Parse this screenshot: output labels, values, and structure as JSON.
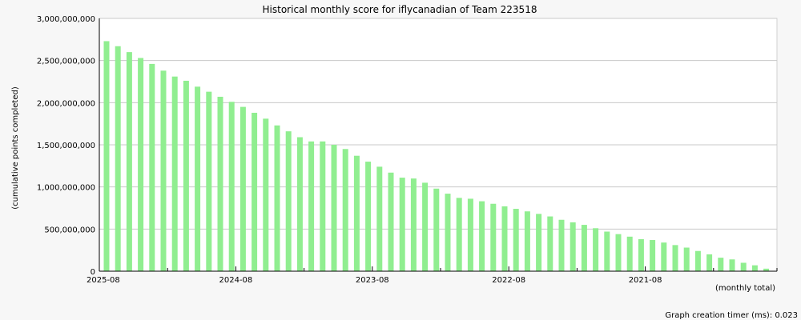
{
  "title": "Historical monthly score for iflycanadian of Team 223518",
  "footer": "Graph creation timer (ms): 0.023",
  "chart_data": {
    "type": "bar",
    "title": "Historical monthly score for iflycanadian of Team 223518",
    "ylabel": "(cumulative points completed)",
    "xlabel": "(monthly total)",
    "ylim": [
      0,
      3000000000
    ],
    "yticks": [
      0,
      500000000,
      1000000000,
      1500000000,
      2000000000,
      2500000000,
      3000000000
    ],
    "ytick_labels": [
      "0",
      "500,000,000",
      "1,000,000,000",
      "1,500,000,000",
      "2,000,000,000",
      "2,500,000,000",
      "3,000,000,000"
    ],
    "xtick_labels": [
      "2025-08",
      "2024-08",
      "2023-08",
      "2022-08",
      "2021-08"
    ],
    "bar_color": "#90ee90",
    "grid": true,
    "values": [
      2730000000,
      2670000000,
      2600000000,
      2530000000,
      2460000000,
      2380000000,
      2310000000,
      2260000000,
      2190000000,
      2130000000,
      2070000000,
      2010000000,
      1950000000,
      1880000000,
      1810000000,
      1730000000,
      1660000000,
      1590000000,
      1540000000,
      1540000000,
      1500000000,
      1450000000,
      1370000000,
      1300000000,
      1240000000,
      1170000000,
      1110000000,
      1100000000,
      1050000000,
      980000000,
      920000000,
      870000000,
      860000000,
      830000000,
      800000000,
      770000000,
      740000000,
      710000000,
      680000000,
      650000000,
      610000000,
      580000000,
      550000000,
      510000000,
      470000000,
      440000000,
      410000000,
      380000000,
      370000000,
      340000000,
      310000000,
      280000000,
      240000000,
      200000000,
      160000000,
      140000000,
      100000000,
      70000000,
      30000000
    ]
  }
}
